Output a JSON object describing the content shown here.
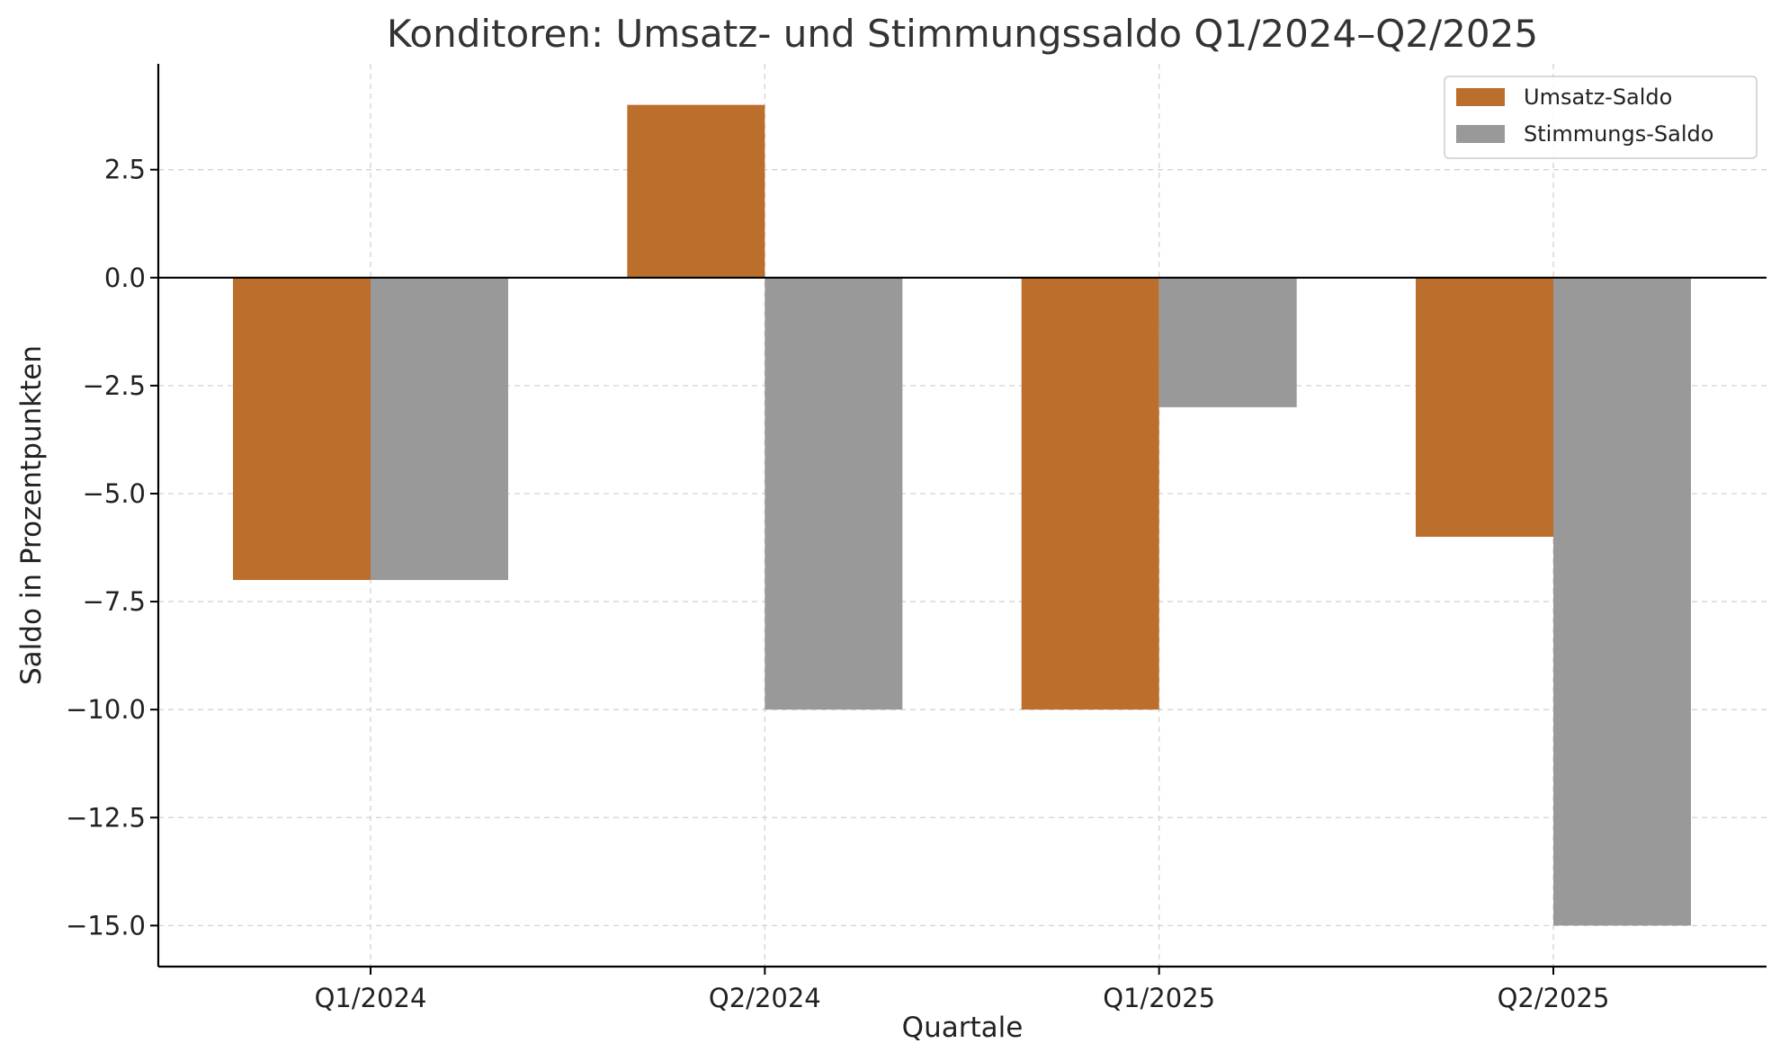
{
  "chart_data": {
    "type": "bar",
    "title": "Konditoren: Umsatz- und Stimmungssaldo Q1/2024–Q2/2025",
    "xlabel": "Quartale",
    "ylabel": "Saldo in Prozentpunkten",
    "categories": [
      "Q1/2024",
      "Q2/2024",
      "Q1/2025",
      "Q2/2025"
    ],
    "series": [
      {
        "name": "Umsatz-Saldo",
        "color": "#bc6f2c",
        "values": [
          -7,
          4,
          -10,
          -6
        ]
      },
      {
        "name": "Stimmungs-Saldo",
        "color": "#999999",
        "values": [
          -7,
          -10,
          -3,
          -15
        ]
      }
    ],
    "ylim": [
      -15.95,
      4.95
    ],
    "yticks": [
      {
        "value": 2.5,
        "label": "2.5"
      },
      {
        "value": 0,
        "label": "0.0"
      },
      {
        "value": -2.5,
        "label": "−2.5"
      },
      {
        "value": -5,
        "label": "−5.0"
      },
      {
        "value": -7.5,
        "label": "−7.5"
      },
      {
        "value": -10,
        "label": "−10.0"
      },
      {
        "value": -12.5,
        "label": "−12.5"
      },
      {
        "value": -15,
        "label": "−15.0"
      }
    ],
    "grid": true,
    "legend_position": "top-right"
  }
}
